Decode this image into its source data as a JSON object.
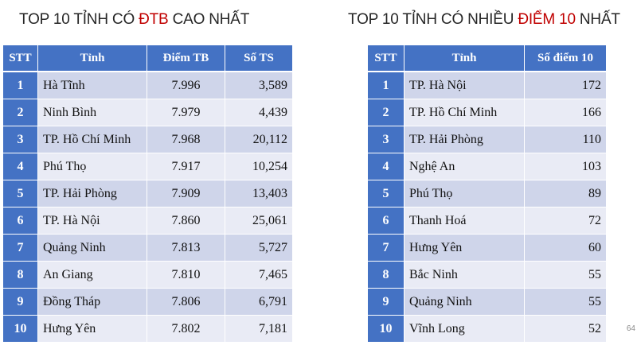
{
  "left": {
    "title_pre": "TOP 10 TỈNH CÓ ",
    "title_highlight": "ĐTB",
    "title_post": " CAO NHẤT",
    "headers": [
      "STT",
      "Tỉnh",
      "Điểm TB",
      "Số TS"
    ],
    "rows": [
      {
        "stt": "1",
        "province": "Hà Tĩnh",
        "avg": "7.996",
        "count": "3,589"
      },
      {
        "stt": "2",
        "province": "Ninh Bình",
        "avg": "7.979",
        "count": "4,439"
      },
      {
        "stt": "3",
        "province": "TP. Hồ Chí Minh",
        "avg": "7.968",
        "count": "20,112"
      },
      {
        "stt": "4",
        "province": "Phú Thọ",
        "avg": "7.917",
        "count": "10,254"
      },
      {
        "stt": "5",
        "province": "TP. Hải Phòng",
        "avg": "7.909",
        "count": "13,403"
      },
      {
        "stt": "6",
        "province": "TP. Hà Nội",
        "avg": "7.860",
        "count": "25,061"
      },
      {
        "stt": "7",
        "province": "Quảng Ninh",
        "avg": "7.813",
        "count": "5,727"
      },
      {
        "stt": "8",
        "province": "An Giang",
        "avg": "7.810",
        "count": "7,465"
      },
      {
        "stt": "9",
        "province": "Đồng Tháp",
        "avg": "7.806",
        "count": "6,791"
      },
      {
        "stt": "10",
        "province": "Hưng Yên",
        "avg": "7.802",
        "count": "7,181"
      }
    ]
  },
  "right": {
    "title_pre": "TOP 10 TỈNH CÓ NHIỀU ",
    "title_highlight": "ĐIỂM 10",
    "title_post": " NHẤT",
    "headers": [
      "STT",
      "Tỉnh",
      "Số điểm 10"
    ],
    "rows": [
      {
        "stt": "1",
        "province": "TP. Hà Nội",
        "tens": "172"
      },
      {
        "stt": "2",
        "province": "TP. Hồ Chí Minh",
        "tens": "166"
      },
      {
        "stt": "3",
        "province": "TP. Hải Phòng",
        "tens": "110"
      },
      {
        "stt": "4",
        "province": "Nghệ An",
        "tens": "103"
      },
      {
        "stt": "5",
        "province": "Phú Thọ",
        "tens": "89"
      },
      {
        "stt": "6",
        "province": "Thanh Hoá",
        "tens": "72"
      },
      {
        "stt": "7",
        "province": "Hưng Yên",
        "tens": "60"
      },
      {
        "stt": "8",
        "province": "Bắc Ninh",
        "tens": "55"
      },
      {
        "stt": "9",
        "province": "Quảng Ninh",
        "tens": "55"
      },
      {
        "stt": "10",
        "province": "Vĩnh Long",
        "tens": "52"
      }
    ]
  },
  "page_number": "64",
  "colors": {
    "header_blue": "#4472c4",
    "row_dark": "#cfd5ea",
    "row_light": "#e9ebf5",
    "highlight_red": "#c00000"
  }
}
